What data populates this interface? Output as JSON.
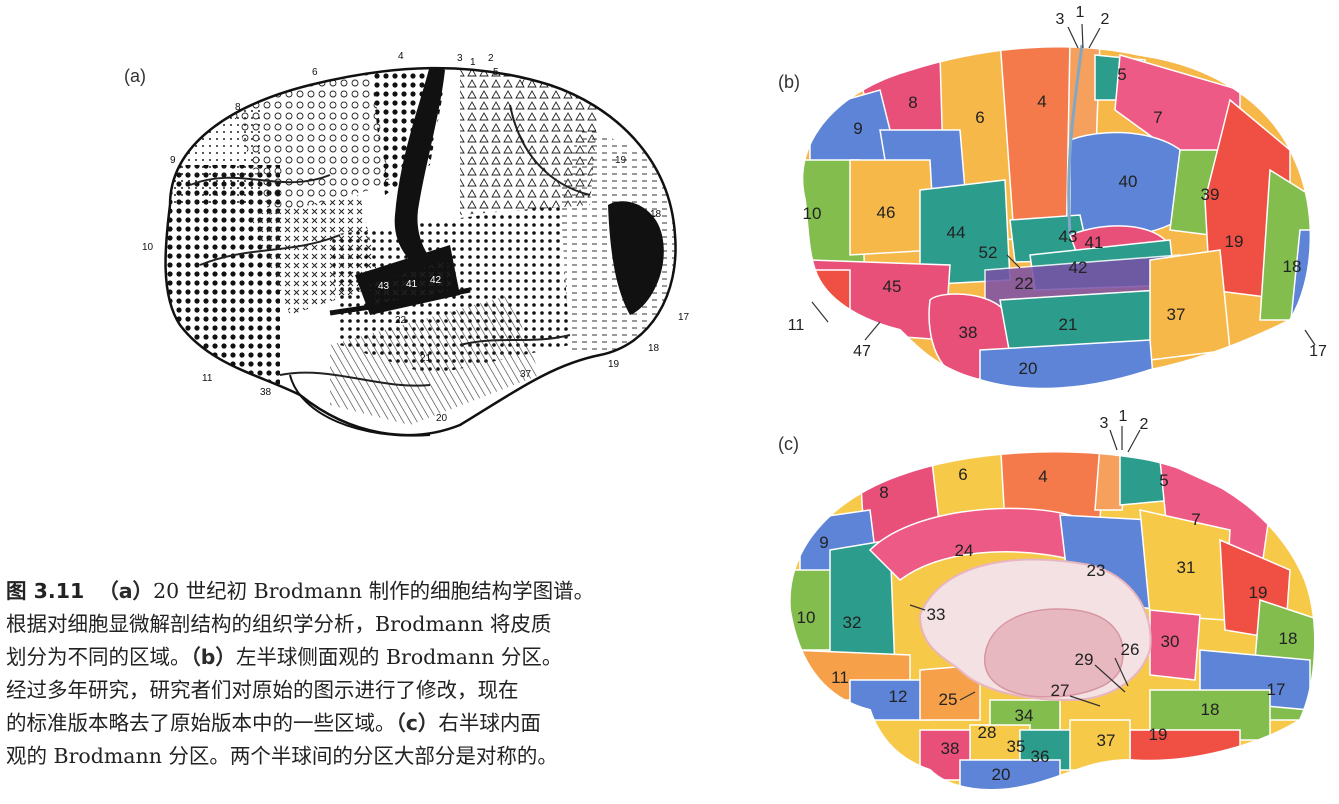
{
  "panels": {
    "a": {
      "label": "(a)",
      "region_numbers": [
        "1",
        "2",
        "3",
        "4",
        "5",
        "6",
        "7",
        "8",
        "9",
        "10",
        "11",
        "17",
        "18",
        "19",
        "19",
        "20",
        "21",
        "22",
        "37",
        "38",
        "41",
        "42",
        "43"
      ]
    },
    "b": {
      "label": "(b)",
      "regions": [
        {
          "n": "8",
          "color": "#e8507a"
        },
        {
          "n": "6",
          "color": "#f7b84a"
        },
        {
          "n": "4",
          "color": "#f47a4c"
        },
        {
          "n": "5",
          "color": "#2c9c8c"
        },
        {
          "n": "7",
          "color": "#ee5a86"
        },
        {
          "n": "9",
          "color": "#5d84d6"
        },
        {
          "n": "46",
          "color": "#f7b84a"
        },
        {
          "n": "44",
          "color": "#2c9c8c"
        },
        {
          "n": "40",
          "color": "#5d84d6"
        },
        {
          "n": "39",
          "color": "#82bd4e"
        },
        {
          "n": "10",
          "color": "#82bd4e"
        },
        {
          "n": "43",
          "color": "#2c9c8c"
        },
        {
          "n": "41",
          "color": "#e8507a"
        },
        {
          "n": "52",
          "color": "#f47a4c"
        },
        {
          "n": "42",
          "color": "#2c9c8c"
        },
        {
          "n": "19",
          "color": "#f05044"
        },
        {
          "n": "18",
          "color": "#82bd4e"
        },
        {
          "n": "22",
          "color": "#7a4fa8"
        },
        {
          "n": "45",
          "color": "#e8507a"
        },
        {
          "n": "38",
          "color": "#e8507a"
        },
        {
          "n": "21",
          "color": "#2c9c8c"
        },
        {
          "n": "37",
          "color": "#f7b84a"
        },
        {
          "n": "20",
          "color": "#5d84d6"
        }
      ],
      "outer_labels": [
        "3",
        "1",
        "2",
        "11",
        "47",
        "17"
      ]
    },
    "c": {
      "label": "(c)",
      "regions": [
        {
          "n": "8",
          "color": "#e8507a"
        },
        {
          "n": "6",
          "color": "#f7c948"
        },
        {
          "n": "4",
          "color": "#f47a4c"
        },
        {
          "n": "5",
          "color": "#2c9c8c"
        },
        {
          "n": "7",
          "color": "#ee5a86"
        },
        {
          "n": "9",
          "color": "#5d84d6"
        },
        {
          "n": "24",
          "color": "#ee5a86"
        },
        {
          "n": "23",
          "color": "#5d84d6"
        },
        {
          "n": "31",
          "color": "#f7c948"
        },
        {
          "n": "19",
          "color": "#f05044"
        },
        {
          "n": "10",
          "color": "#82bd4e"
        },
        {
          "n": "32",
          "color": "#2c9c8c"
        },
        {
          "n": "33",
          "color": "#ee5a86"
        },
        {
          "n": "30",
          "color": "#ee5a86"
        },
        {
          "n": "18",
          "color": "#82bd4e"
        },
        {
          "n": "26",
          "color": "#f7c948"
        },
        {
          "n": "29",
          "color": "#f47a4c"
        },
        {
          "n": "11",
          "color": "#f7a04a"
        },
        {
          "n": "12",
          "color": "#5d84d6"
        },
        {
          "n": "25",
          "color": "#f7a04a"
        },
        {
          "n": "27",
          "color": "#f47a4c"
        },
        {
          "n": "17",
          "color": "#5d84d6"
        },
        {
          "n": "18",
          "color": "#82bd4e"
        },
        {
          "n": "34",
          "color": "#82bd4e"
        },
        {
          "n": "28",
          "color": "#f7c948"
        },
        {
          "n": "35",
          "color": "#f7c948"
        },
        {
          "n": "36",
          "color": "#2c9c8c"
        },
        {
          "n": "37",
          "color": "#f7c948"
        },
        {
          "n": "19",
          "color": "#f05044"
        },
        {
          "n": "38",
          "color": "#e8507a"
        },
        {
          "n": "20",
          "color": "#5d84d6"
        }
      ],
      "outer_labels": [
        "3",
        "1",
        "2"
      ]
    }
  },
  "caption": {
    "figure_number": "图 3.11",
    "lines": [
      {
        "tag": "（a）",
        "text": "20 世纪初 Brodmann 制作的细胞结构学图谱。"
      },
      {
        "tag": "",
        "text": "根据对细胞显微解剖结构的组织学分析，Brodmann 将皮质"
      },
      {
        "tag": "",
        "text": "划分为不同的区域。"
      },
      {
        "tag": "（b）",
        "text": "左半球侧面观的 Brodmann 分区。"
      },
      {
        "tag": "",
        "text": "经过多年研究，研究者们对原始的图示进行了修改，现在"
      },
      {
        "tag": "",
        "text": "的标准版本略去了原始版本中的一些区域。"
      },
      {
        "tag": "（c）",
        "text": "右半球内面"
      },
      {
        "tag": "",
        "text": "观的 Brodmann 分区。两个半球间的分区大部分是对称的。"
      }
    ]
  },
  "colors": {
    "pink": "#e8507a",
    "yellow": "#f7b84a",
    "orange": "#f47a4c",
    "teal": "#2c9c8c",
    "blue": "#5d84d6",
    "green": "#82bd4e",
    "red": "#f05044",
    "purple": "#7a4fa8"
  }
}
